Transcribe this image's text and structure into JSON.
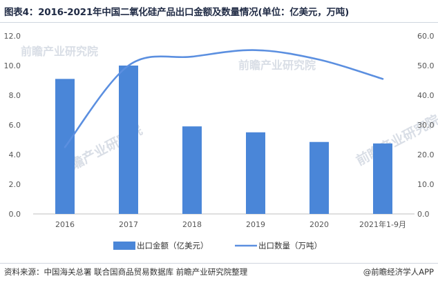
{
  "header": {
    "title": "图表4：2016-2021年中国二氧化硅产品出口金额及数量情况(单位：亿美元，万吨)"
  },
  "footer": {
    "source": "资料来源：中国海关总署 联合国商品贸易数据库 前瞻产业研究院整理",
    "brand": "@前瞻经济学人APP"
  },
  "watermark": {
    "text": "前瞻产业研究院"
  },
  "chart_data": {
    "type": "bar",
    "categories": [
      "2016",
      "2017",
      "2018",
      "2019",
      "2020",
      "2021年1-9月"
    ],
    "series": [
      {
        "name": "出口金额（亿美元）",
        "type": "bar",
        "axis": "left",
        "values": [
          9.1,
          10.0,
          5.9,
          5.5,
          4.85,
          4.75
        ],
        "color": "#4a86d8"
      },
      {
        "name": "出口数量（万吨）",
        "type": "line",
        "axis": "right",
        "values": [
          22.5,
          50.0,
          53.0,
          55.2,
          52.0,
          45.5
        ],
        "color": "#5b8fe0"
      }
    ],
    "y_left": {
      "min": 0,
      "max": 12,
      "ticks": [
        "0.0",
        "2.0",
        "4.0",
        "6.0",
        "8.0",
        "10.0",
        "12.0"
      ]
    },
    "y_right": {
      "min": 0,
      "max": 60,
      "ticks": [
        "0.0",
        "10.0",
        "20.0",
        "30.0",
        "40.0",
        "50.0",
        "60.0"
      ]
    },
    "grid": false,
    "legend_position": "bottom"
  }
}
